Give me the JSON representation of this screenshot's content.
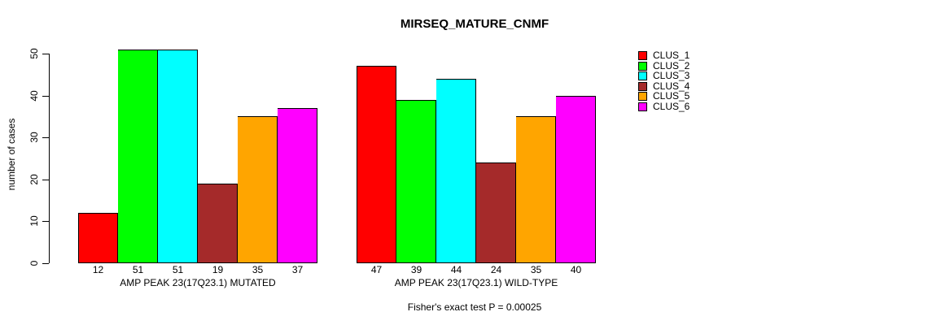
{
  "chart_data": {
    "type": "bar",
    "title": "MIRSEQ_MATURE_CNMF",
    "ylabel": "number of cases",
    "xlabel": "",
    "ylim": [
      0,
      50
    ],
    "yticks": [
      0,
      10,
      20,
      30,
      40,
      50
    ],
    "grid": false,
    "legend_position": "top-right",
    "series_colors": [
      "#ff0000",
      "#00ff00",
      "#00ffff",
      "#a52a2a",
      "#ffa500",
      "#ff00ff"
    ],
    "legend": [
      "CLUS_1",
      "CLUS_2",
      "CLUS_3",
      "CLUS_4",
      "CLUS_5",
      "CLUS_6"
    ],
    "groups": [
      {
        "label": "AMP PEAK 23(17Q23.1) MUTATED",
        "values": [
          12,
          51,
          51,
          19,
          35,
          37
        ]
      },
      {
        "label": "AMP PEAK 23(17Q23.1) WILD-TYPE",
        "values": [
          47,
          39,
          44,
          24,
          35,
          40
        ]
      }
    ],
    "caption": "Fisher's exact test P = 0.00025"
  }
}
